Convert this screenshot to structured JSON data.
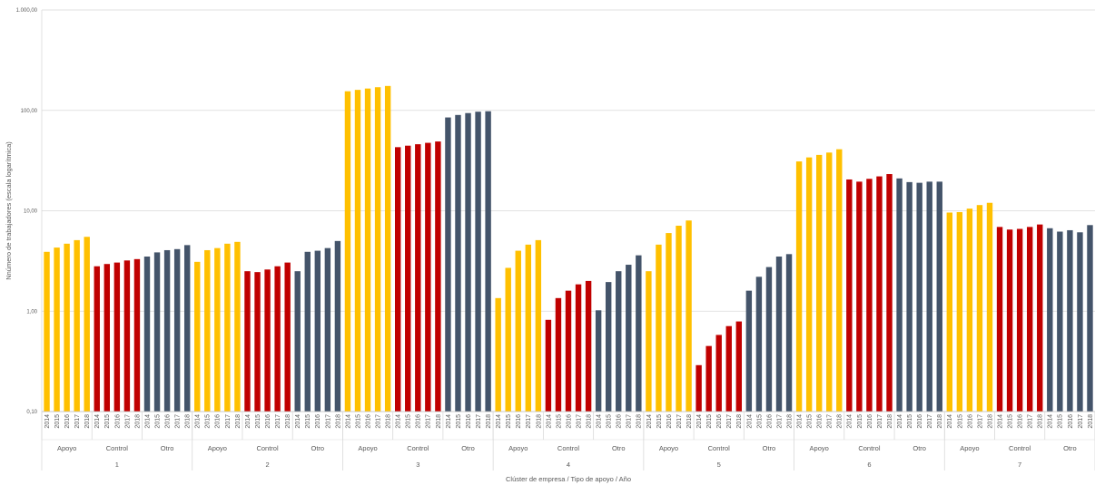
{
  "chart_data": {
    "type": "bar",
    "scale": "log",
    "ylim": [
      0.1,
      1000
    ],
    "yticks": [
      "0,10",
      "1,00",
      "10,00",
      "100,00",
      "1.000,00"
    ],
    "ylabel": "Nnúmero de trabajadores (escala logarítmica)",
    "xlabel": "Clúster de empresa / Tipo de apoyo / Año",
    "grid": true,
    "years": [
      "2014",
      "2015",
      "2016",
      "2017",
      "2018"
    ],
    "types": [
      "Apoyo",
      "Control",
      "Otro"
    ],
    "type_colors": {
      "Apoyo": "#FFC000",
      "Control": "#C00000",
      "Otro": "#44546A"
    },
    "clusters": [
      {
        "label": "1",
        "values": {
          "Apoyo": [
            3.9,
            4.3,
            4.7,
            5.1,
            5.5
          ],
          "Control": [
            2.8,
            2.95,
            3.05,
            3.2,
            3.3
          ],
          "Otro": [
            3.5,
            3.85,
            4.05,
            4.15,
            4.55
          ]
        }
      },
      {
        "label": "2",
        "values": {
          "Apoyo": [
            3.1,
            4.05,
            4.25,
            4.7,
            4.9
          ],
          "Control": [
            2.5,
            2.45,
            2.6,
            2.8,
            3.05
          ],
          "Otro": [
            2.5,
            3.9,
            4.0,
            4.25,
            5.0
          ]
        }
      },
      {
        "label": "3",
        "values": {
          "Apoyo": [
            155,
            160,
            165,
            170,
            175
          ],
          "Control": [
            43,
            44.5,
            46,
            47.5,
            49
          ],
          "Otro": [
            85,
            90,
            94,
            97,
            98
          ]
        }
      },
      {
        "label": "4",
        "values": {
          "Apoyo": [
            1.35,
            2.7,
            4.0,
            4.6,
            5.1
          ],
          "Control": [
            0.82,
            1.35,
            1.6,
            1.85,
            2.0
          ],
          "Otro": [
            1.02,
            1.95,
            2.5,
            2.9,
            3.6
          ]
        }
      },
      {
        "label": "5",
        "values": {
          "Apoyo": [
            2.5,
            4.6,
            6.0,
            7.1,
            8.0
          ],
          "Control": [
            0.29,
            0.45,
            0.58,
            0.71,
            0.79
          ],
          "Otro": [
            1.6,
            2.2,
            2.75,
            3.5,
            3.7
          ]
        }
      },
      {
        "label": "6",
        "values": {
          "Apoyo": [
            31,
            34,
            36,
            38,
            41
          ],
          "Control": [
            20.5,
            19.5,
            20.8,
            22,
            23.2
          ],
          "Otro": [
            21,
            19.3,
            19,
            19.5,
            19.5
          ]
        }
      },
      {
        "label": "7",
        "values": {
          "Apoyo": [
            9.6,
            9.7,
            10.5,
            11.4,
            12.0
          ],
          "Control": [
            6.9,
            6.5,
            6.6,
            6.9,
            7.3
          ],
          "Otro": [
            6.7,
            6.2,
            6.4,
            6.1,
            7.2
          ]
        }
      }
    ]
  }
}
